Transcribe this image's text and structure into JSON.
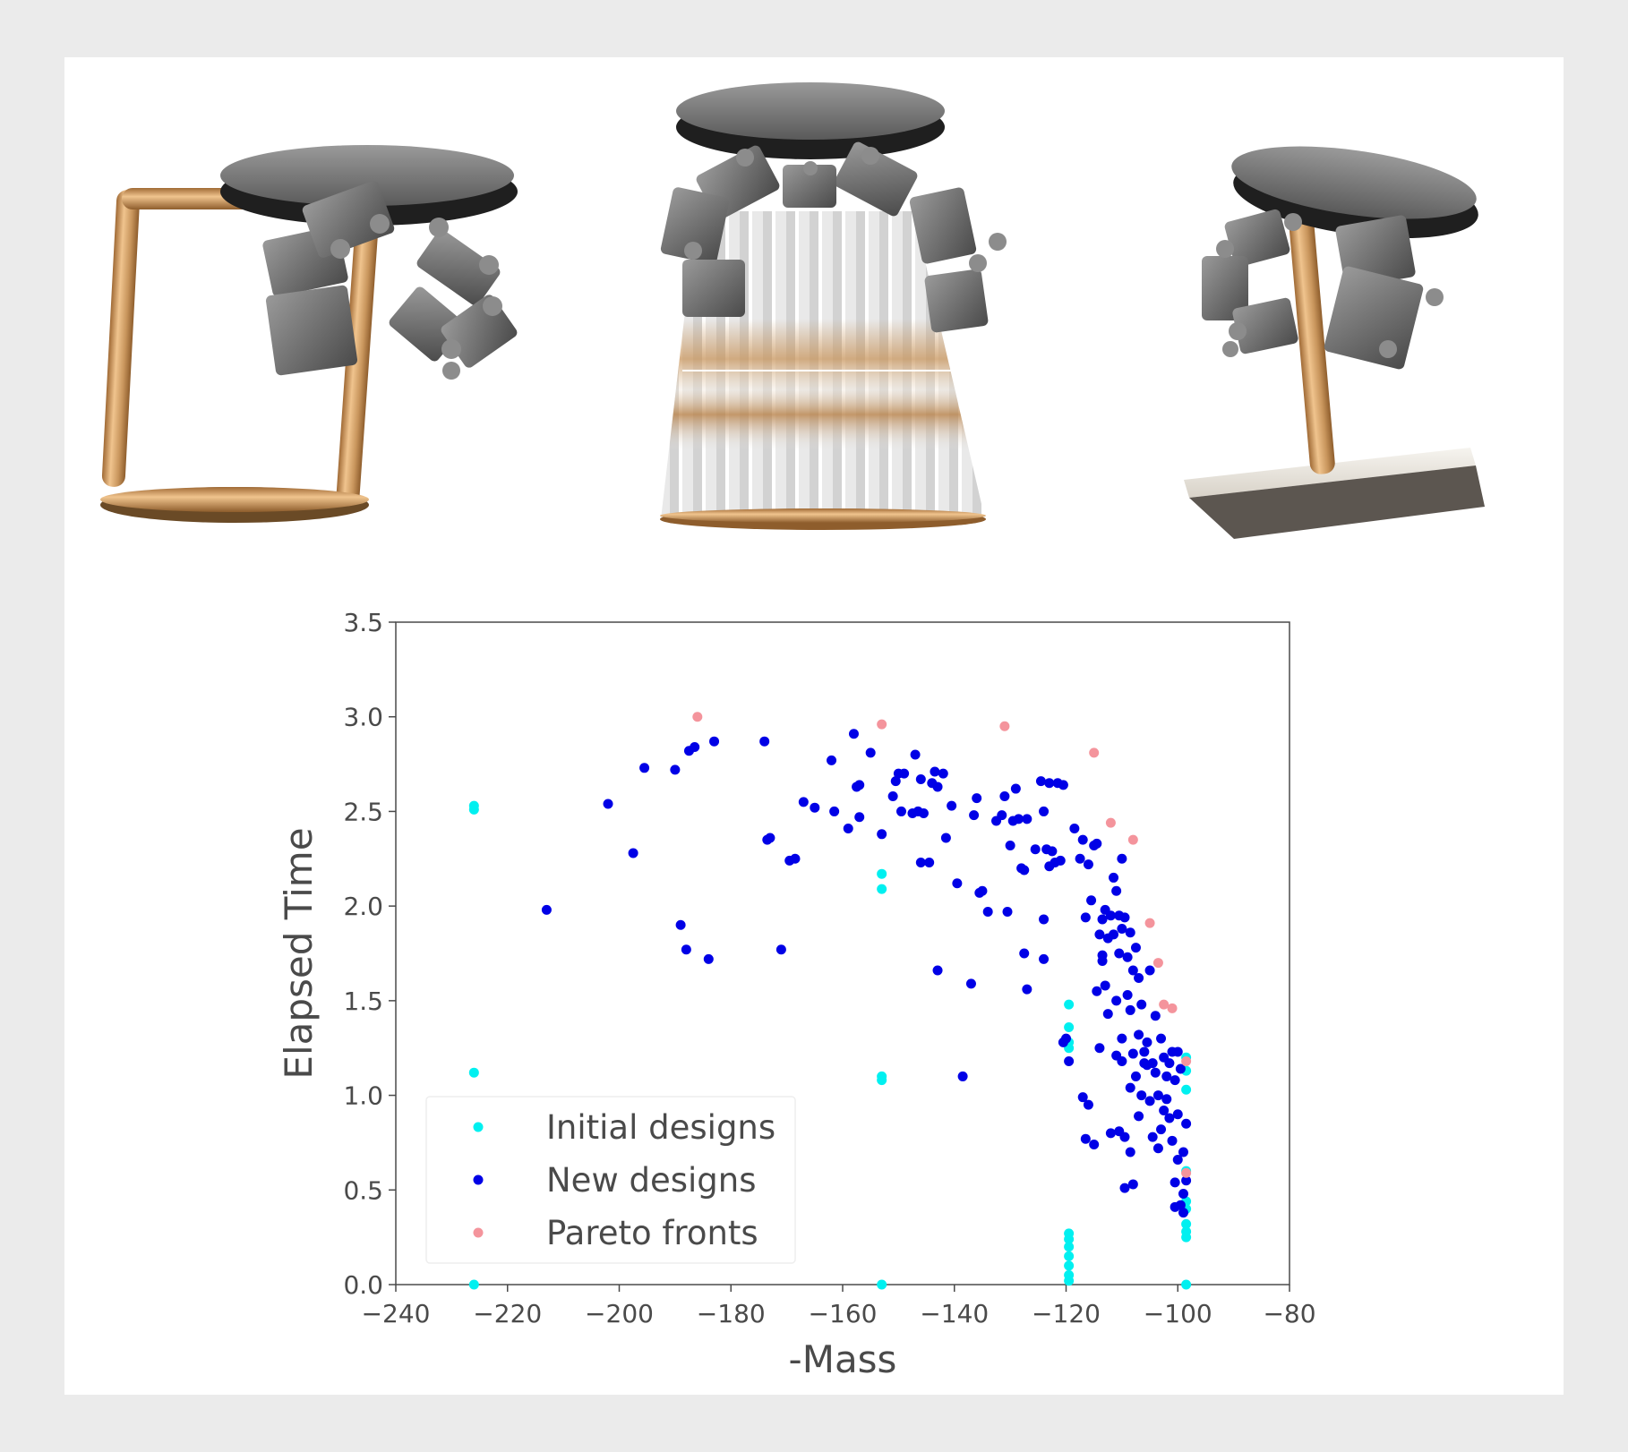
{
  "colors": {
    "initial": "#00f0f0",
    "new": "#0000e6",
    "pareto": "#f4949c",
    "copper": "#c8955c",
    "metal": "#7a7a7a",
    "disk": "#3d3d3d"
  },
  "robots": [
    {
      "name": "robot-rectangular-frame"
    },
    {
      "name": "robot-truncated-cone"
    },
    {
      "name": "robot-single-leg-plate"
    }
  ],
  "chart_data": {
    "type": "scatter",
    "xlabel": "-Mass",
    "ylabel": "Elapsed Time",
    "xlim": [
      -240,
      -80
    ],
    "ylim": [
      0,
      3.5
    ],
    "xticks": [
      -240,
      -220,
      -200,
      -180,
      -160,
      -140,
      -120,
      -100,
      -80
    ],
    "yticks": [
      0.0,
      0.5,
      1.0,
      1.5,
      2.0,
      2.5,
      3.0,
      3.5
    ],
    "xtick_labels": [
      "−240",
      "−220",
      "−200",
      "−180",
      "−160",
      "−140",
      "−120",
      "−100",
      "−80"
    ],
    "ytick_labels": [
      "0.0",
      "0.5",
      "1.0",
      "1.5",
      "2.0",
      "2.5",
      "3.0",
      "3.5"
    ],
    "legend_position": "lower-left",
    "series": [
      {
        "name": "Initial designs",
        "color": "#00f0f0",
        "points": [
          [
            -226,
            2.53
          ],
          [
            -226,
            2.51
          ],
          [
            -226,
            1.12
          ],
          [
            -226,
            0.0
          ],
          [
            -153,
            2.17
          ],
          [
            -153,
            2.09
          ],
          [
            -153,
            1.1
          ],
          [
            -153,
            1.08
          ],
          [
            -153,
            0.0
          ],
          [
            -119.5,
            1.48
          ],
          [
            -119.5,
            1.36
          ],
          [
            -119.5,
            1.28
          ],
          [
            -119.5,
            1.25
          ],
          [
            -119.5,
            0.27
          ],
          [
            -119.5,
            0.24
          ],
          [
            -119.5,
            0.2
          ],
          [
            -119.5,
            0.15
          ],
          [
            -119.5,
            0.1
          ],
          [
            -119.5,
            0.05
          ],
          [
            -119.5,
            0.02
          ],
          [
            -98.5,
            1.2
          ],
          [
            -98.5,
            1.13
          ],
          [
            -98.5,
            1.03
          ],
          [
            -98.5,
            0.6
          ],
          [
            -98.5,
            0.44
          ],
          [
            -98.5,
            0.4
          ],
          [
            -98.5,
            0.32
          ],
          [
            -98.5,
            0.28
          ],
          [
            -98.5,
            0.25
          ],
          [
            -98.5,
            0.0
          ]
        ]
      },
      {
        "name": "New designs",
        "color": "#0000e6",
        "points": [
          [
            -213,
            1.98
          ],
          [
            -202,
            2.54
          ],
          [
            -197.5,
            2.28
          ],
          [
            -195.5,
            2.73
          ],
          [
            -190,
            2.72
          ],
          [
            -189,
            1.9
          ],
          [
            -188,
            1.77
          ],
          [
            -187.5,
            2.82
          ],
          [
            -186.5,
            2.84
          ],
          [
            -184,
            1.72
          ],
          [
            -183,
            2.87
          ],
          [
            -174,
            2.87
          ],
          [
            -173.5,
            2.35
          ],
          [
            -173,
            2.36
          ],
          [
            -171,
            1.77
          ],
          [
            -169.5,
            2.24
          ],
          [
            -168.5,
            2.25
          ],
          [
            -167,
            2.55
          ],
          [
            -165,
            2.52
          ],
          [
            -162,
            2.77
          ],
          [
            -161.5,
            2.5
          ],
          [
            -159,
            2.41
          ],
          [
            -158,
            2.91
          ],
          [
            -157.5,
            2.63
          ],
          [
            -157,
            2.47
          ],
          [
            -157,
            2.64
          ],
          [
            -155,
            2.81
          ],
          [
            -153,
            2.38
          ],
          [
            -151,
            2.58
          ],
          [
            -150.5,
            2.66
          ],
          [
            -150,
            2.7
          ],
          [
            -149.5,
            2.5
          ],
          [
            -149,
            2.7
          ],
          [
            -147.5,
            2.49
          ],
          [
            -147,
            2.8
          ],
          [
            -146.5,
            2.5
          ],
          [
            -146,
            2.23
          ],
          [
            -146,
            2.67
          ],
          [
            -145.5,
            2.49
          ],
          [
            -144.5,
            2.23
          ],
          [
            -144,
            2.65
          ],
          [
            -143.5,
            2.71
          ],
          [
            -143,
            2.63
          ],
          [
            -143,
            1.66
          ],
          [
            -142,
            2.7
          ],
          [
            -141.5,
            2.36
          ],
          [
            -140.5,
            2.53
          ],
          [
            -139.5,
            2.12
          ],
          [
            -138.5,
            1.1
          ],
          [
            -137,
            1.59
          ],
          [
            -136.5,
            2.48
          ],
          [
            -136,
            2.57
          ],
          [
            -135.5,
            2.07
          ],
          [
            -135,
            2.08
          ],
          [
            -134,
            1.97
          ],
          [
            -132.5,
            2.45
          ],
          [
            -131.5,
            2.48
          ],
          [
            -131,
            2.58
          ],
          [
            -130.5,
            1.97
          ],
          [
            -130,
            2.32
          ],
          [
            -129.5,
            2.45
          ],
          [
            -129,
            2.62
          ],
          [
            -128.5,
            2.46
          ],
          [
            -128,
            2.2
          ],
          [
            -127.5,
            1.75
          ],
          [
            -127.5,
            2.19
          ],
          [
            -127,
            2.46
          ],
          [
            -127,
            1.56
          ],
          [
            -125.5,
            2.3
          ],
          [
            -124.5,
            2.66
          ],
          [
            -124,
            2.5
          ],
          [
            -124,
            1.93
          ],
          [
            -124,
            1.72
          ],
          [
            -123.5,
            2.3
          ],
          [
            -123,
            2.65
          ],
          [
            -123,
            2.21
          ],
          [
            -122.5,
            2.29
          ],
          [
            -122,
            2.23
          ],
          [
            -121.5,
            2.65
          ],
          [
            -121,
            2.24
          ],
          [
            -120.5,
            2.64
          ],
          [
            -120.5,
            1.28
          ],
          [
            -120,
            1.3
          ],
          [
            -119.5,
            1.18
          ],
          [
            -118.5,
            2.41
          ],
          [
            -117.5,
            2.25
          ],
          [
            -117,
            2.35
          ],
          [
            -117,
            0.99
          ],
          [
            -116.5,
            0.77
          ],
          [
            -116.5,
            1.94
          ],
          [
            -116,
            2.22
          ],
          [
            -116,
            0.95
          ],
          [
            -115.5,
            2.03
          ],
          [
            -115,
            2.32
          ],
          [
            -115,
            0.74
          ],
          [
            -114.5,
            2.33
          ],
          [
            -114.5,
            1.55
          ],
          [
            -114,
            1.85
          ],
          [
            -114,
            1.25
          ],
          [
            -113.5,
            1.74
          ],
          [
            -113.5,
            1.93
          ],
          [
            -113.5,
            1.71
          ],
          [
            -113,
            1.98
          ],
          [
            -113,
            1.58
          ],
          [
            -112.5,
            1.83
          ],
          [
            -112.5,
            1.43
          ],
          [
            -112,
            1.95
          ],
          [
            -112,
            0.8
          ],
          [
            -111.5,
            2.15
          ],
          [
            -111.5,
            1.85
          ],
          [
            -111,
            2.08
          ],
          [
            -111,
            1.5
          ],
          [
            -111,
            1.21
          ],
          [
            -110.5,
            1.75
          ],
          [
            -110.5,
            0.81
          ],
          [
            -110.5,
            1.95
          ],
          [
            -110,
            2.25
          ],
          [
            -110,
            1.88
          ],
          [
            -110,
            1.3
          ],
          [
            -110,
            1.18
          ],
          [
            -109.5,
            1.94
          ],
          [
            -109.5,
            0.78
          ],
          [
            -109.5,
            0.51
          ],
          [
            -109,
            1.73
          ],
          [
            -109,
            1.53
          ],
          [
            -108.5,
            1.86
          ],
          [
            -108.5,
            1.45
          ],
          [
            -108.5,
            1.04
          ],
          [
            -108.5,
            0.7
          ],
          [
            -108,
            1.66
          ],
          [
            -108,
            1.22
          ],
          [
            -108,
            0.53
          ],
          [
            -107.5,
            1.78
          ],
          [
            -107.5,
            1.1
          ],
          [
            -107,
            1.62
          ],
          [
            -107,
            1.32
          ],
          [
            -107,
            0.89
          ],
          [
            -106.5,
            1.48
          ],
          [
            -106.5,
            1.0
          ],
          [
            -106,
            1.23
          ],
          [
            -106,
            1.17
          ],
          [
            -105.5,
            1.28
          ],
          [
            -105.5,
            1.16
          ],
          [
            -105,
            1.66
          ],
          [
            -105,
            0.97
          ],
          [
            -104.5,
            1.17
          ],
          [
            -104.5,
            0.78
          ],
          [
            -104,
            1.42
          ],
          [
            -104,
            1.12
          ],
          [
            -103.5,
            1.0
          ],
          [
            -103.5,
            0.72
          ],
          [
            -103,
            1.3
          ],
          [
            -103,
            0.82
          ],
          [
            -102.5,
            1.2
          ],
          [
            -102.5,
            0.92
          ],
          [
            -102,
            1.1
          ],
          [
            -102,
            0.98
          ],
          [
            -101.5,
            1.17
          ],
          [
            -101.5,
            0.88
          ],
          [
            -101,
            1.23
          ],
          [
            -101,
            0.76
          ],
          [
            -100.5,
            1.08
          ],
          [
            -100.5,
            0.54
          ],
          [
            -100.5,
            0.41
          ],
          [
            -100,
            1.23
          ],
          [
            -100,
            0.9
          ],
          [
            -100,
            0.66
          ],
          [
            -99.5,
            1.14
          ],
          [
            -99.5,
            0.42
          ],
          [
            -99,
            0.7
          ],
          [
            -99,
            0.48
          ],
          [
            -99,
            0.38
          ],
          [
            -98.5,
            0.55
          ],
          [
            -98.5,
            0.85
          ]
        ]
      },
      {
        "name": "Pareto fronts",
        "color": "#f4949c",
        "points": [
          [
            -186,
            3.0
          ],
          [
            -153,
            2.96
          ],
          [
            -131,
            2.95
          ],
          [
            -115,
            2.81
          ],
          [
            -112,
            2.44
          ],
          [
            -108,
            2.35
          ],
          [
            -105,
            1.91
          ],
          [
            -103.5,
            1.7
          ],
          [
            -102.5,
            1.48
          ],
          [
            -101,
            1.46
          ],
          [
            -98.5,
            1.18
          ],
          [
            -98.5,
            0.59
          ]
        ]
      }
    ]
  }
}
